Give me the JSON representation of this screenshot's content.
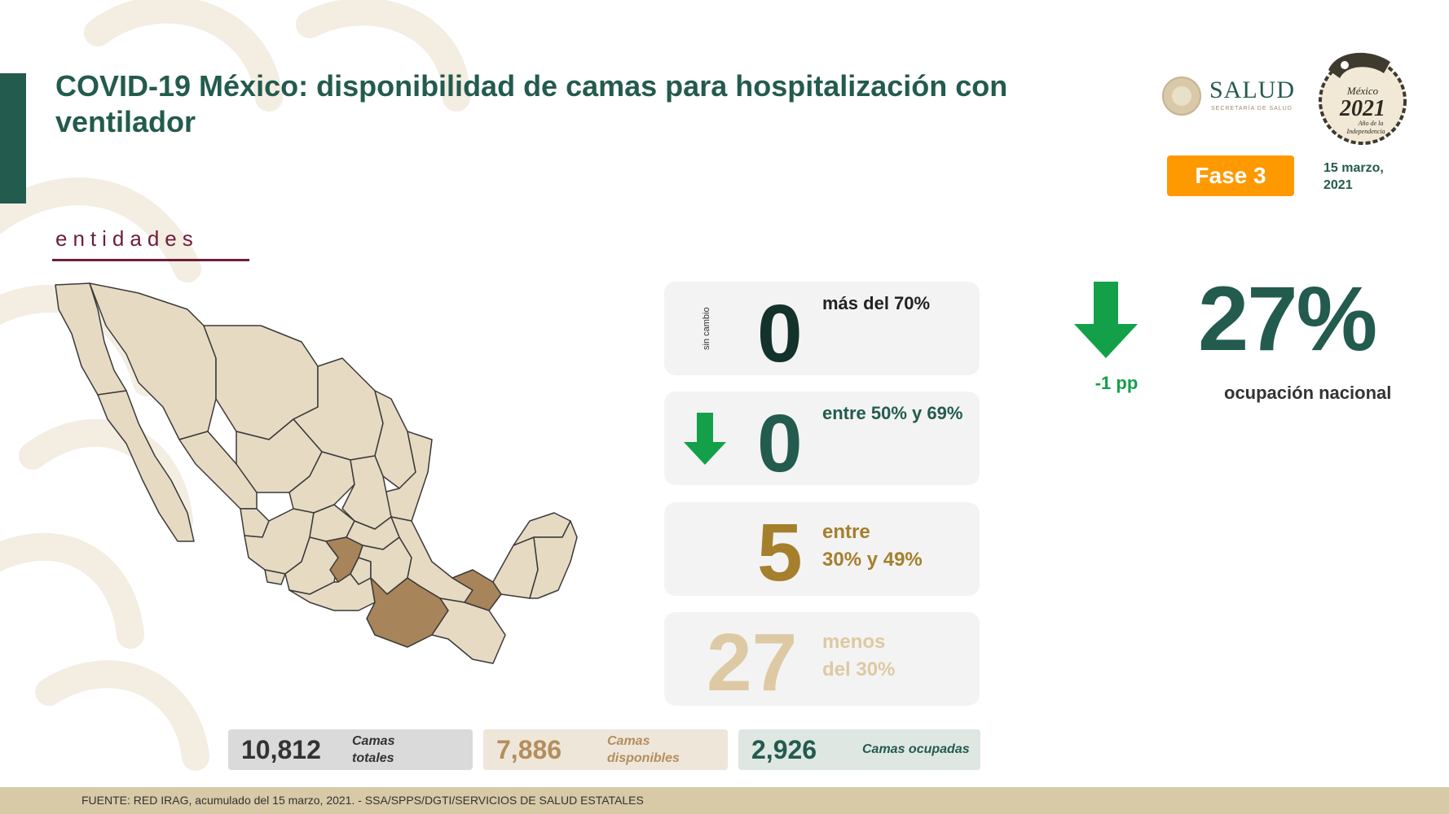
{
  "header": {
    "title": "COVID-19 México: disponibilidad de camas para hospitalización con ventilador",
    "subtitle": "entidades",
    "phase": "Fase 3",
    "date_line1": "15 marzo,",
    "date_line2": "2021"
  },
  "logos": {
    "salud": "SALUD",
    "salud_sub": "SECRETARÍA DE SALUD",
    "mexico": "México",
    "year": "2021",
    "year_sub1": "Año de la",
    "year_sub2": "Independencia"
  },
  "categories": [
    {
      "count": "0",
      "label_line1": "más del 70%",
      "label_line2": "",
      "trend": "sin cambio",
      "count_color": "#13322b"
    },
    {
      "count": "0",
      "label_line1": "entre 50% y 69%",
      "label_line2": "",
      "trend": "down",
      "count_color": "#235b4e"
    },
    {
      "count": "5",
      "label_line1": "entre",
      "label_line2": "30% y 49%",
      "trend": "",
      "count_color": "#a57f2c"
    },
    {
      "count": "27",
      "label_line1": "menos",
      "label_line2": "del 30%",
      "trend": "",
      "count_color": "#ddc9a3"
    }
  ],
  "national": {
    "percent": "27%",
    "label": "ocupación nacional",
    "change": "-1 pp",
    "trend": "down"
  },
  "beds": {
    "total_value": "10,812",
    "total_label_line1": "Camas",
    "total_label_line2": "totales",
    "available_value": "7,886",
    "available_label_line1": "Camas",
    "available_label_line2": "disponibles",
    "occupied_value": "2,926",
    "occupied_label": "Camas ocupadas"
  },
  "colors": {
    "primary": "#235b4e",
    "accent": "#ff9900",
    "burgundy": "#6f1d3b",
    "state_default": "#e6dac3",
    "state_highlight": "#a8845a",
    "arrow_green": "#13a049"
  },
  "footer": {
    "source": "FUENTE: RED IRAG, acumulado del 15 marzo, 2021. -  SSA/SPPS/DGTI/SERVICIOS DE SALUD ESTATALES"
  }
}
